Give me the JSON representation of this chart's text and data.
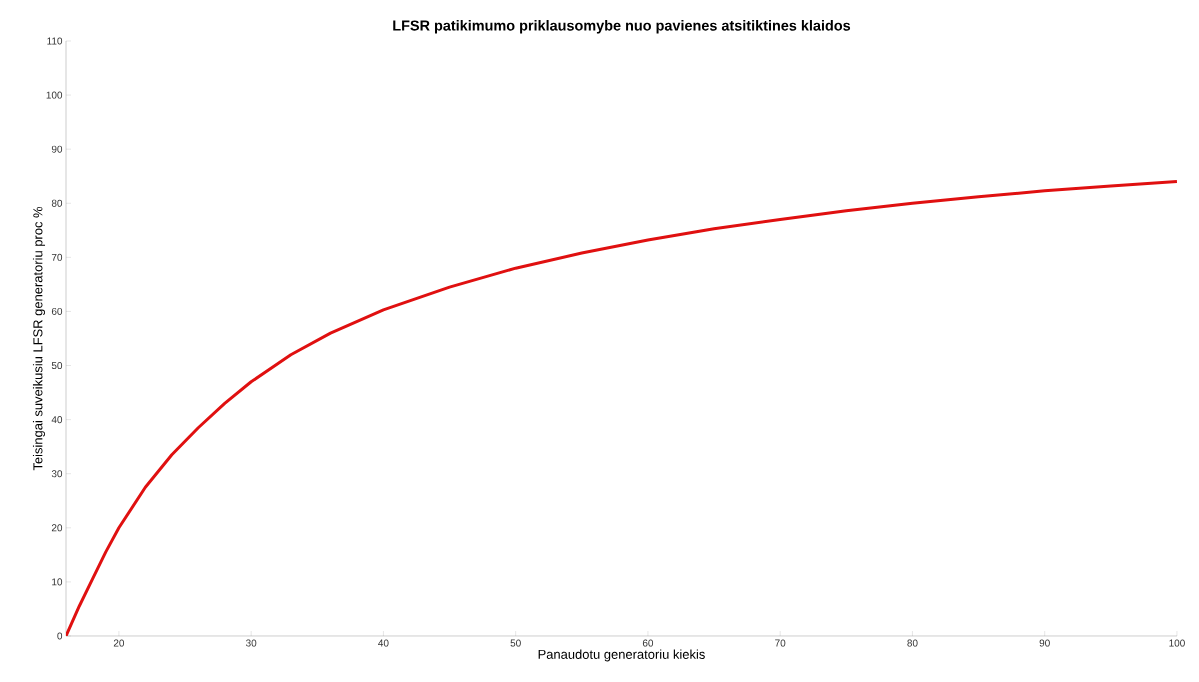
{
  "chart_data": {
    "type": "line",
    "title": "LFSR patikimumo priklausomybe nuo pavienes atsitiktines klaidos",
    "xlabel": "Panaudotu generatoriu kiekis",
    "ylabel": "Teisingai suveikusiu LFSR generatoriu proc %",
    "x": [
      16,
      17,
      18,
      19,
      20,
      22,
      24,
      26,
      28,
      30,
      33,
      36,
      40,
      45,
      50,
      55,
      60,
      65,
      70,
      75,
      80,
      85,
      90,
      95,
      100
    ],
    "series": [
      {
        "color": "#e01010",
        "values": [
          0,
          5.5,
          10.5,
          15.5,
          20,
          27.5,
          33.5,
          38.5,
          43,
          47,
          52,
          56,
          60.3,
          64.5,
          68,
          70.8,
          73.2,
          75.3,
          77,
          78.6,
          80,
          81.2,
          82.3,
          83.2,
          84
        ]
      }
    ],
    "xlim": [
      16,
      100
    ],
    "ylim": [
      0,
      110
    ],
    "xticks": [
      20,
      30,
      40,
      50,
      60,
      70,
      80,
      90,
      100
    ],
    "yticks": [
      0,
      10,
      20,
      30,
      40,
      50,
      60,
      70,
      80,
      90,
      100,
      110
    ],
    "marker": "none",
    "line_style": "solid"
  }
}
